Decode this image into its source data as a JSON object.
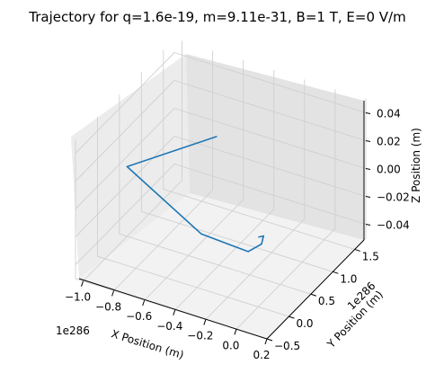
{
  "chart_data": {
    "type": "line",
    "title": "Trajectory for q=1.6e-19, m=9.11e-31, B=1 T, E=0 V/m",
    "x_axis": {
      "label": "X Position (m)",
      "offset_label": "1e286",
      "ticks": [
        "−1.0",
        "−0.8",
        "−0.6",
        "−0.4",
        "−0.2",
        "0.0",
        "0.2"
      ],
      "range": [
        -1.05,
        0.2
      ]
    },
    "y_axis": {
      "label": "Y Position (m)",
      "offset_label": "1e286",
      "ticks": [
        "−0.5",
        "0.0",
        "0.5",
        "1.0",
        "1.5"
      ],
      "range": [
        -0.5,
        1.75
      ]
    },
    "z_axis": {
      "label": "Z Position (m)",
      "ticks": [
        "−0.04",
        "−0.02",
        "0.00",
        "0.02",
        "0.04"
      ],
      "range": [
        -0.05,
        0.05
      ]
    },
    "series": [
      {
        "color": "#1f77b4",
        "note_units": "x and y in units of 1e286 m",
        "x": [
          0.0,
          0.02,
          0.05,
          0.02,
          -0.3,
          -1.0,
          -0.7
        ],
        "y": [
          0.0,
          0.05,
          -0.1,
          -0.3,
          -0.25,
          0.5,
          1.5
        ],
        "z": [
          0,
          0,
          0,
          0,
          0,
          0,
          0
        ]
      }
    ]
  }
}
